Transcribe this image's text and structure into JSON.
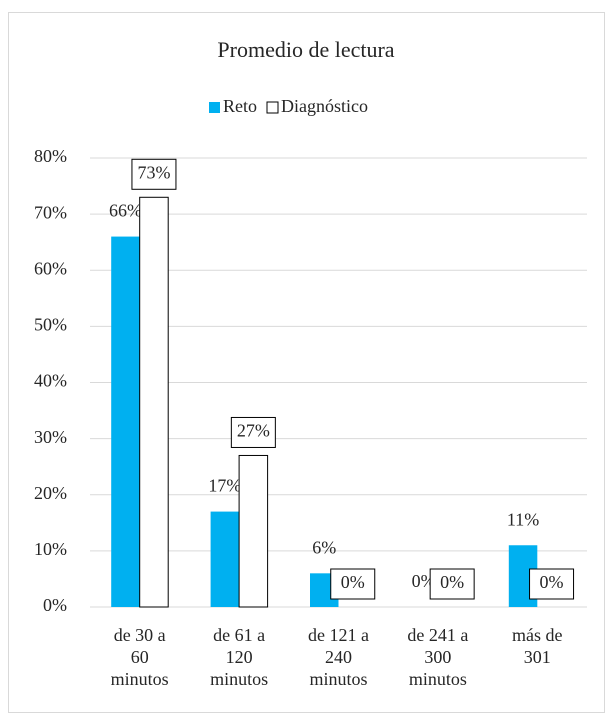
{
  "chart_data": {
    "type": "bar",
    "title": "Promedio de lectura",
    "categories": [
      "de 30 a 60 minutos",
      "de 61 a 120 minutos",
      "de 121 a 240 minutos",
      "de 241 a 300 minutos",
      "más de 301"
    ],
    "series": [
      {
        "name": "Reto",
        "color": "#00b0f0",
        "values": [
          66,
          17,
          6,
          0,
          11
        ],
        "value_labels": [
          "66%",
          "17%",
          "6%",
          "0%",
          "11%"
        ]
      },
      {
        "name": "Diagnóstico",
        "color": "#ffffff",
        "values": [
          73,
          27,
          0,
          0,
          0
        ],
        "value_labels": [
          "73%",
          "27%",
          "0%",
          "0%",
          "0%"
        ]
      }
    ],
    "ylim": [
      0,
      80
    ],
    "yticks": [
      {
        "value": 0,
        "label": "0%"
      },
      {
        "value": 10,
        "label": "10%"
      },
      {
        "value": 20,
        "label": "20%"
      },
      {
        "value": 30,
        "label": "30%"
      },
      {
        "value": 40,
        "label": "40%"
      },
      {
        "value": 50,
        "label": "50%"
      },
      {
        "value": 60,
        "label": "60%"
      },
      {
        "value": 70,
        "label": "70%"
      },
      {
        "value": 80,
        "label": "80%"
      }
    ],
    "grid": true,
    "legend": "top"
  }
}
